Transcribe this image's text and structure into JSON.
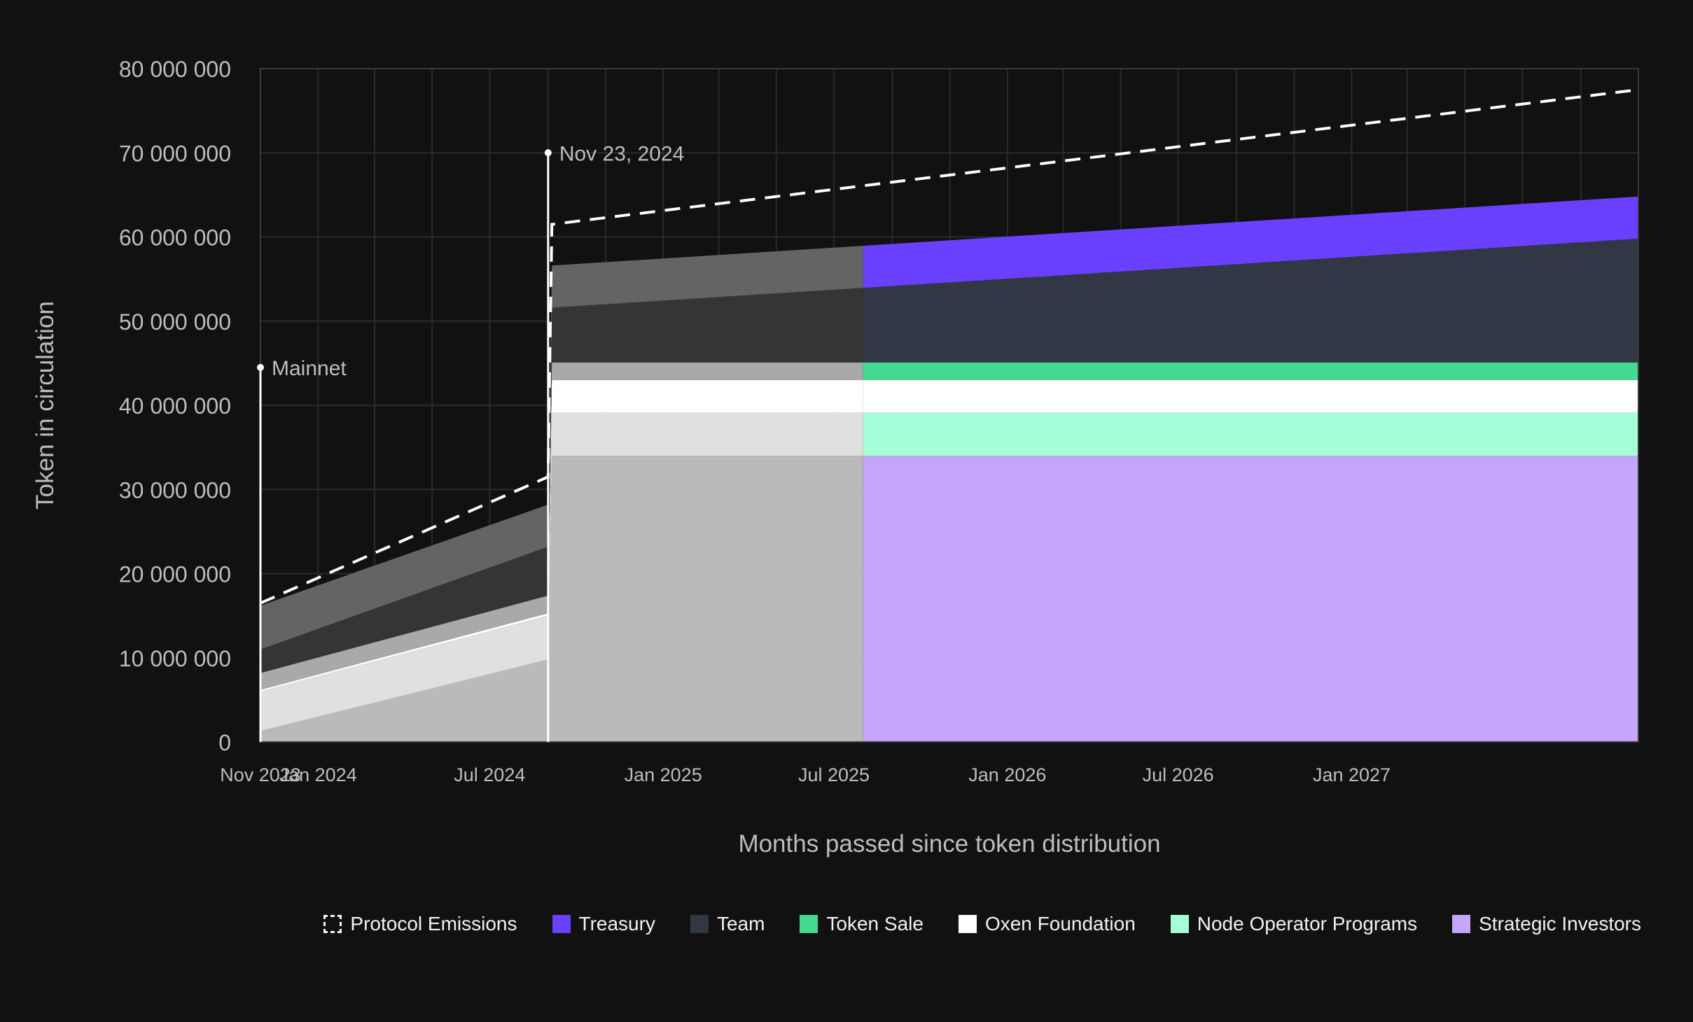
{
  "chart_data": {
    "type": "area",
    "title": "",
    "xlabel": "Months passed since token distribution",
    "ylabel": "Token in circulation",
    "x_tick_labels": [
      "Nov 2023",
      "Jan 2024",
      "Jul 2024",
      "Jan 2025",
      "Jul 2025",
      "Jan 2026",
      "Jul 2026",
      "Jan 2027"
    ],
    "y_tick_labels": [
      "0",
      "10 000 000",
      "20 000 000",
      "30 000 000",
      "40 000 000",
      "50 000 000",
      "60 000 000",
      "70 000 000",
      "80 000 000"
    ],
    "ylim": [
      0,
      80000000
    ],
    "xlim": [
      "2023-11-01",
      "2027-11-01"
    ],
    "grid": true,
    "legend_position": "bottom",
    "annotations": [
      {
        "label": "Mainnet",
        "date": "2023-11-01",
        "y": 44500000
      },
      {
        "label": "Nov 23, 2024",
        "date": "2024-09-01",
        "y": 70000000
      }
    ],
    "protocol_emissions": {
      "name": "Protocol Emissions",
      "color": "#ffffff",
      "points": [
        {
          "date": "2023-11-01",
          "y": 16500000
        },
        {
          "date": "2024-09-01",
          "y": 31500000
        },
        {
          "date": "2024-09-05",
          "y": 61500000
        },
        {
          "date": "2027-11-01",
          "y": 77500000
        }
      ]
    },
    "series": [
      {
        "name": "Strategic Investors",
        "color": "#c6a6fc",
        "values": [
          {
            "date": "2023-11-01",
            "y": 1300000
          },
          {
            "date": "2024-09-01",
            "y": 9800000
          },
          {
            "date": "2024-09-05",
            "y": 34000000
          },
          {
            "date": "2027-11-01",
            "y": 34000000
          }
        ]
      },
      {
        "name": "Node Operator Programs",
        "color": "#a5ffd6",
        "values": [
          {
            "date": "2023-11-01",
            "y": 4700000
          },
          {
            "date": "2024-09-01",
            "y": 5200000
          },
          {
            "date": "2024-09-05",
            "y": 5100000
          },
          {
            "date": "2027-11-01",
            "y": 5100000
          }
        ]
      },
      {
        "name": "Oxen Foundation",
        "color": "#ffffff",
        "values": [
          {
            "date": "2023-11-01",
            "y": 200000
          },
          {
            "date": "2024-09-01",
            "y": 300000
          },
          {
            "date": "2024-09-05",
            "y": 3900000
          },
          {
            "date": "2027-11-01",
            "y": 3900000
          }
        ]
      },
      {
        "name": "Token Sale",
        "color": "#46d992",
        "values": [
          {
            "date": "2023-11-01",
            "y": 2000000
          },
          {
            "date": "2024-09-01",
            "y": 2100000
          },
          {
            "date": "2024-09-05",
            "y": 2100000
          },
          {
            "date": "2027-11-01",
            "y": 2100000
          }
        ]
      },
      {
        "name": "Team",
        "color": "#323746",
        "values": [
          {
            "date": "2023-11-01",
            "y": 2800000
          },
          {
            "date": "2024-09-01",
            "y": 5800000
          },
          {
            "date": "2024-09-05",
            "y": 6500000
          },
          {
            "date": "2027-11-01",
            "y": 14700000
          }
        ]
      },
      {
        "name": "Treasury",
        "color": "#6a40ff",
        "values": [
          {
            "date": "2023-11-01",
            "y": 5200000
          },
          {
            "date": "2024-09-01",
            "y": 5000000
          },
          {
            "date": "2024-09-05",
            "y": 5000000
          },
          {
            "date": "2027-11-01",
            "y": 5000000
          }
        ]
      }
    ],
    "muted_colors_before": {
      "date": "2025-08-01",
      "Strategic Investors": "#bababa",
      "Node Operator Programs": "#e0e0e0",
      "Oxen Foundation": "#ffffff",
      "Token Sale": "#a9a9a9",
      "Team": "#353535",
      "Treasury": "#646464"
    }
  },
  "legend": [
    {
      "label": "Protocol Emissions",
      "color": "#ffffff",
      "style": "dashed"
    },
    {
      "label": "Treasury",
      "color": "#6a40ff",
      "style": "solid"
    },
    {
      "label": "Team",
      "color": "#323746",
      "style": "solid"
    },
    {
      "label": "Token Sale",
      "color": "#46d992",
      "style": "solid"
    },
    {
      "label": "Oxen Foundation",
      "color": "#ffffff",
      "style": "solid"
    },
    {
      "label": "Node Operator Programs",
      "color": "#a5ffd6",
      "style": "solid"
    },
    {
      "label": "Strategic Investors",
      "color": "#c6a6fc",
      "style": "solid"
    }
  ]
}
